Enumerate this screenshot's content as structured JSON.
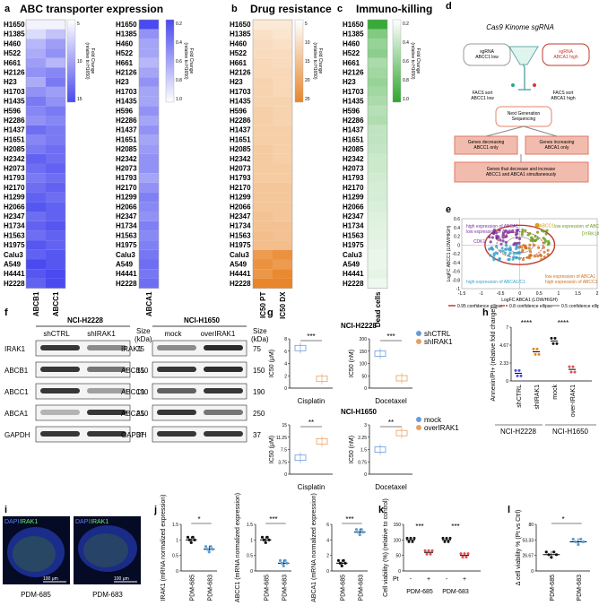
{
  "panels": {
    "a": {
      "letter": "a",
      "title": "ABC transporter expression"
    },
    "b": {
      "letter": "b",
      "title": "Drug resistance"
    },
    "c": {
      "letter": "c",
      "title": "Immuno-killing"
    },
    "d": {
      "letter": "d",
      "title": "Cas9 Kinome sgRNA"
    },
    "e": {
      "letter": "e"
    },
    "f": {
      "letter": "f"
    },
    "g": {
      "letter": "g"
    },
    "h": {
      "letter": "h"
    },
    "i": {
      "letter": "i"
    },
    "j": {
      "letter": "j"
    },
    "k": {
      "letter": "k"
    },
    "l": {
      "letter": "l"
    }
  },
  "cell_lines": [
    "H1650",
    "H1385",
    "H460",
    "H522",
    "H661",
    "H2126",
    "H23",
    "H1703",
    "H1435",
    "H596",
    "H2286",
    "H1437",
    "H1651",
    "H2085",
    "H2342",
    "H2073",
    "H1793",
    "H2170",
    "H1299",
    "H2066",
    "H2347",
    "H1734",
    "H1563",
    "H1975",
    "Calu3",
    "A549",
    "H4441",
    "H2228"
  ],
  "colors": {
    "blue": "#4a4af0",
    "orange": "#e8852a",
    "green": "#2ea62e",
    "red": "#c0392b",
    "pink": "#f1bcae",
    "grey_band": "#3a3a3a"
  },
  "chart_data": [
    {
      "type": "heatmap",
      "panel": "a",
      "columns": [
        "ABCB1",
        "ABCC1"
      ],
      "values": [
        [
          1,
          1
        ],
        [
          3,
          5
        ],
        [
          6,
          8
        ],
        [
          7,
          9
        ],
        [
          8,
          6
        ],
        [
          9,
          10
        ],
        [
          7,
          11
        ],
        [
          9,
          8
        ],
        [
          11,
          9
        ],
        [
          10,
          11
        ],
        [
          9,
          10
        ],
        [
          12,
          11
        ],
        [
          10,
          11
        ],
        [
          11,
          12
        ],
        [
          13,
          12
        ],
        [
          12,
          13
        ],
        [
          11,
          12
        ],
        [
          12,
          13
        ],
        [
          13,
          12
        ],
        [
          14,
          13
        ],
        [
          12,
          13
        ],
        [
          13,
          14
        ],
        [
          12,
          13
        ],
        [
          14,
          13
        ],
        [
          13,
          14
        ],
        [
          15,
          14
        ],
        [
          14,
          15
        ],
        [
          13,
          15
        ]
      ],
      "colorbar": {
        "ticks": [
          "5",
          "10",
          "15"
        ],
        "label": "Fold Change (relative to H1650)"
      }
    },
    {
      "type": "heatmap",
      "panel": "a2",
      "columns": [
        "ABCA1"
      ],
      "values": [
        0.2,
        0.12,
        0.1,
        0.1,
        0.08,
        0.1,
        0.12,
        0.1,
        0.1,
        0.12,
        0.1,
        0.12,
        0.1,
        0.11,
        0.12,
        0.12,
        0.1,
        0.12,
        0.14,
        0.13,
        0.12,
        0.14,
        0.13,
        0.14,
        0.15,
        0.16,
        0.15,
        0.16
      ],
      "colorbar": {
        "ticks": [
          "0.2",
          "0.4",
          "0.6",
          "0.8",
          "1.0"
        ],
        "label": "Fold Change (relative to H1650)"
      }
    },
    {
      "type": "heatmap",
      "panel": "b",
      "columns": [
        "IC50 PT",
        "IC50 DX"
      ],
      "values": [
        [
          2,
          2
        ],
        [
          4,
          3
        ],
        [
          5,
          4
        ],
        [
          5,
          5
        ],
        [
          6,
          5
        ],
        [
          6,
          6
        ],
        [
          7,
          6
        ],
        [
          7,
          6
        ],
        [
          7,
          7
        ],
        [
          8,
          7
        ],
        [
          8,
          7
        ],
        [
          8,
          8
        ],
        [
          8,
          8
        ],
        [
          9,
          8
        ],
        [
          9,
          8
        ],
        [
          9,
          9
        ],
        [
          9,
          9
        ],
        [
          10,
          10
        ],
        [
          10,
          10
        ],
        [
          10,
          10
        ],
        [
          11,
          10
        ],
        [
          11,
          11
        ],
        [
          12,
          11
        ],
        [
          12,
          12
        ],
        [
          20,
          22
        ],
        [
          22,
          20
        ],
        [
          21,
          24
        ],
        [
          25,
          25
        ]
      ],
      "colorbar": {
        "ticks": [
          "5",
          "10",
          "15",
          "20",
          "25"
        ],
        "label": "Fold Change (relative to H1650)"
      }
    },
    {
      "type": "heatmap",
      "panel": "c",
      "columns": [
        "Dead cells"
      ],
      "values": [
        0.95,
        0.6,
        0.5,
        0.55,
        0.4,
        0.45,
        0.5,
        0.45,
        0.4,
        0.35,
        0.38,
        0.3,
        0.3,
        0.28,
        0.25,
        0.25,
        0.22,
        0.2,
        0.2,
        0.18,
        0.16,
        0.15,
        0.14,
        0.12,
        0.1,
        0.1,
        0.12,
        0.08
      ],
      "colorbar": {
        "ticks": [
          "0.2",
          "0.4",
          "0.6",
          "0.8",
          "1.0"
        ],
        "label": "Fold Change (relative to H1650)"
      }
    },
    {
      "type": "scatter",
      "panel": "e",
      "xlabel": "LogFC ABCA1 (LOW/HIGH)",
      "ylabel": "LogFC ABCC1 (LOW/HIGH)",
      "xlim": [
        -1.5,
        2
      ],
      "ylim": [
        -1,
        0.6
      ],
      "xticks": [
        "-1.5",
        "-1",
        "-0.5",
        "0",
        "0.5",
        "1",
        "1.5",
        "2"
      ],
      "yticks": [
        "-1",
        "-0.8",
        "-0.6",
        "-0.4",
        "-0.2",
        "0",
        "0.2",
        "0.4",
        "0.6"
      ],
      "quadrant_labels": [
        "high expression of ABCA1 low expression of ABCC1",
        "low expression of ABCA1/C1",
        "low expression of ABCA1 high expression of ABCC1",
        "high expression of ABCA1/C1"
      ],
      "legend": [
        "0.95 confidence ellipse",
        "0.8 confidence ellipse",
        "0.5 confidence ellipse"
      ],
      "highlight": [
        "ABCC1",
        "CDK1",
        "IRAK1",
        "WNK1",
        "ERK1",
        "BRD2",
        "PIK3C3",
        "DYRK1A"
      ]
    },
    {
      "type": "bar",
      "panel": "g1",
      "title": "NCI-H2228",
      "subtitle": "Cisplatin",
      "ylabel": "IC50 (μM)",
      "ylim": [
        0,
        8
      ],
      "categories": [
        "shCTRL",
        "shIRAK1"
      ],
      "values": [
        6.5,
        1.5
      ],
      "significance": "***"
    },
    {
      "type": "bar",
      "panel": "g2",
      "subtitle": "Docetaxel",
      "ylabel": "IC50 (nM)",
      "ylim": [
        0,
        200
      ],
      "categories": [
        "shCTRL",
        "shIRAK1"
      ],
      "values": [
        140,
        40
      ],
      "significance": "***",
      "legend": [
        "shCTRL",
        "shIRAK1"
      ]
    },
    {
      "type": "bar",
      "panel": "g3",
      "title": "NCI-H1650",
      "subtitle": "Cisplatin",
      "ylabel": "IC50 (μM)",
      "ylim": [
        0,
        15
      ],
      "categories": [
        "mock",
        "overIRAK1"
      ],
      "values": [
        5,
        10
      ],
      "significance": "**"
    },
    {
      "type": "bar",
      "panel": "g4",
      "subtitle": "Docetaxel",
      "ylabel": "IC50 (nM)",
      "ylim": [
        0,
        3
      ],
      "categories": [
        "mock",
        "overIRAK1"
      ],
      "values": [
        1.5,
        2.5
      ],
      "significance": "**",
      "legend": [
        "mock",
        "overIRAK1"
      ]
    },
    {
      "type": "scatter",
      "panel": "h",
      "ylabel": "Annexin/PI+ (relative fold change)",
      "ylim": [
        0,
        7
      ],
      "categories": [
        "shCTRL",
        "shIRAK1",
        "mock",
        "over-IRAK1"
      ],
      "means": [
        1.0,
        3.8,
        5.2,
        1.5
      ],
      "groups": [
        "NCI-H2228",
        "NCI-H1650"
      ],
      "significance": [
        "****",
        "****"
      ]
    },
    {
      "type": "bar",
      "panel": "j1",
      "ylabel": "IRAK1 (mRNA normalized expression)",
      "ylim": [
        0,
        1.5
      ],
      "categories": [
        "PDM-685",
        "PDM-683"
      ],
      "values": [
        1.0,
        0.7
      ],
      "significance": "*"
    },
    {
      "type": "bar",
      "panel": "j2",
      "ylabel": "ABCC1 (mRNA normalized expression)",
      "ylim": [
        0,
        1.5
      ],
      "categories": [
        "PDM-685",
        "PDM-683"
      ],
      "values": [
        1.0,
        0.25
      ],
      "significance": "***"
    },
    {
      "type": "bar",
      "panel": "j3",
      "ylabel": "ABCA1 (mRNA normalized expression)",
      "ylim": [
        0,
        6
      ],
      "categories": [
        "PDM-685",
        "PDM-683"
      ],
      "values": [
        1.0,
        5.0
      ],
      "significance": "***"
    },
    {
      "type": "bar",
      "panel": "k",
      "ylabel": "Cell viability (%) (relative to control)",
      "ylim": [
        0,
        150
      ],
      "categories": [
        "-",
        "+",
        "-",
        "+"
      ],
      "group_labels": [
        "PDM-685",
        "PDM-683"
      ],
      "row_label": "Pt",
      "values": [
        100,
        60,
        100,
        50
      ],
      "significance": [
        "***",
        "***"
      ]
    },
    {
      "type": "bar",
      "panel": "l",
      "ylabel": "Δ cell viability % (Pt vs Ctrl)",
      "ylim": [
        0,
        80
      ],
      "categories": [
        "PDM-685",
        "PDM-683"
      ],
      "values": [
        28,
        50
      ],
      "significance": "*"
    }
  ],
  "flow_d": {
    "header": "Cas9 Kinome sgRNA",
    "sg_low": "sgRNA ABCC1 low",
    "sg_high": "sgRNA ABCA1 high",
    "facs_left": "FACS sort ABCC1 low",
    "facs_right": "FACS sort ABCA1 high",
    "ngs": "Next Generation Sequencing",
    "box1": "Genes decreasing ABCC1 only",
    "box2": "Genes increasing ABCA1 only",
    "box3": "Genes that decrease and increase ABCC1 and ABCA1 simultaneously"
  },
  "blots": {
    "h2228": {
      "title": "NCI-H2228",
      "lanes": [
        "shCTRL",
        "shIRAK1"
      ],
      "size_label": "Size (kDa)",
      "rows": [
        {
          "name": "IRAK1",
          "kda": "75"
        },
        {
          "name": "ABCB1",
          "kda": "150"
        },
        {
          "name": "ABCC1",
          "kda": "190"
        },
        {
          "name": "ABCA1",
          "kda": "250"
        },
        {
          "name": "GAPDH",
          "kda": "37"
        }
      ]
    },
    "h1650": {
      "title": "NCI-H1650",
      "lanes": [
        "mock",
        "overIRAK1"
      ],
      "size_label": "Size (kDa)",
      "rows": [
        {
          "name": "IRAK1",
          "kda": "75"
        },
        {
          "name": "ABCB1",
          "kda": "150"
        },
        {
          "name": "ABCC1",
          "kda": "190"
        },
        {
          "name": "ABCA1",
          "kda": "250"
        },
        {
          "name": "GAPDH",
          "kda": "37"
        }
      ]
    }
  },
  "micro": {
    "dapi": "DAPI",
    "irak1": "IRAK1",
    "scale": "100 μm",
    "left": "PDM-685",
    "right": "PDM-683"
  }
}
